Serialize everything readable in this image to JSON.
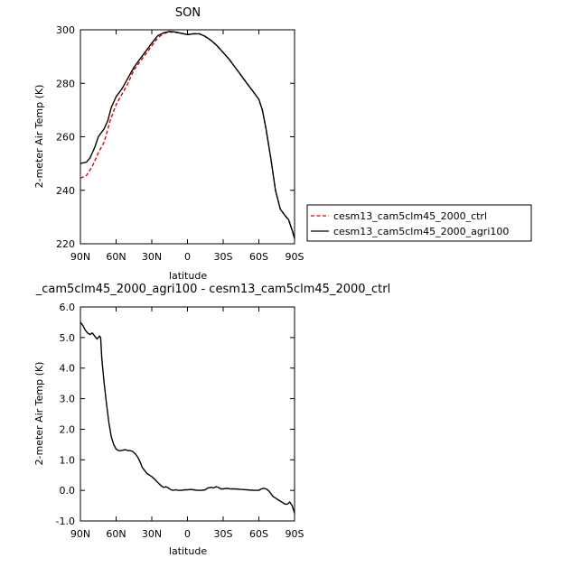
{
  "chart_data": [
    {
      "type": "line",
      "title": "SON",
      "xlabel": "latitude",
      "ylabel": "2-meter Air Temp (K)",
      "xlim": [
        90,
        -90
      ],
      "ylim": [
        220,
        300
      ],
      "x_ticks": [
        90,
        60,
        30,
        0,
        -30,
        -60,
        -90
      ],
      "x_tick_labels": [
        "90N",
        "60N",
        "30N",
        "0",
        "30S",
        "60S",
        "90S"
      ],
      "y_ticks": [
        220,
        240,
        260,
        280,
        300
      ],
      "y_tick_labels": [
        "220",
        "240",
        "260",
        "280",
        "300"
      ],
      "grid": false,
      "legend_position": "right",
      "series": [
        {
          "name": "cesm13_cam5clm45_2000_ctrl",
          "color": "#dd0000",
          "dash": "dashed",
          "points": [
            [
              90,
              244.5
            ],
            [
              85,
              245.5
            ],
            [
              80,
              249
            ],
            [
              75,
              254
            ],
            [
              70,
              258
            ],
            [
              65,
              266
            ],
            [
              60,
              272
            ],
            [
              55,
              276
            ],
            [
              50,
              280
            ],
            [
              45,
              285
            ],
            [
              40,
              288
            ],
            [
              35,
              291
            ],
            [
              30,
              294
            ],
            [
              25,
              297
            ],
            [
              20,
              298.6
            ],
            [
              15,
              299.2
            ],
            [
              10,
              299
            ],
            [
              5,
              298.7
            ],
            [
              0,
              298.2
            ],
            [
              -5,
              298.5
            ],
            [
              -10,
              298.5
            ],
            [
              -15,
              297.5
            ],
            [
              -20,
              296
            ],
            [
              -25,
              294
            ],
            [
              -30,
              291.5
            ],
            [
              -35,
              289
            ],
            [
              -40,
              286
            ],
            [
              -45,
              283
            ],
            [
              -50,
              280
            ],
            [
              -55,
              277
            ],
            [
              -60,
              274
            ],
            [
              -63,
              270
            ],
            [
              -66,
              263
            ],
            [
              -70,
              252
            ],
            [
              -74,
              240
            ],
            [
              -78,
              233
            ],
            [
              -82,
              230.5
            ],
            [
              -85,
              229
            ],
            [
              -88,
              225
            ],
            [
              -90,
              222
            ]
          ]
        },
        {
          "name": "cesm13_cam5clm45_2000_agri100",
          "color": "#000000",
          "dash": "solid",
          "points": [
            [
              90,
              250
            ],
            [
              85,
              250.5
            ],
            [
              82,
              252
            ],
            [
              78,
              256
            ],
            [
              75,
              260
            ],
            [
              70,
              263
            ],
            [
              67,
              266
            ],
            [
              64,
              271
            ],
            [
              60,
              275
            ],
            [
              55,
              278
            ],
            [
              50,
              282
            ],
            [
              45,
              286
            ],
            [
              40,
              289
            ],
            [
              35,
              292
            ],
            [
              30,
              295
            ],
            [
              25,
              297.8
            ],
            [
              20,
              298.9
            ],
            [
              15,
              299.4
            ],
            [
              10,
              299.2
            ],
            [
              5,
              298.7
            ],
            [
              0,
              298.2
            ],
            [
              -5,
              298.5
            ],
            [
              -10,
              298.5
            ],
            [
              -15,
              297.5
            ],
            [
              -20,
              296
            ],
            [
              -25,
              294
            ],
            [
              -30,
              291.5
            ],
            [
              -35,
              289
            ],
            [
              -40,
              286
            ],
            [
              -45,
              283
            ],
            [
              -50,
              280
            ],
            [
              -55,
              277
            ],
            [
              -60,
              274
            ],
            [
              -63,
              270
            ],
            [
              -66,
              263
            ],
            [
              -70,
              252
            ],
            [
              -74,
              240
            ],
            [
              -78,
              233
            ],
            [
              -82,
              230.5
            ],
            [
              -85,
              229
            ],
            [
              -88,
              225
            ],
            [
              -90,
              222
            ]
          ]
        }
      ]
    },
    {
      "type": "line",
      "title": "_cam5clm45_2000_agri100 - cesm13_cam5clm45_2000_ctrl",
      "xlabel": "latitude",
      "ylabel": "2-meter Air Temp (K)",
      "xlim": [
        90,
        -90
      ],
      "ylim": [
        -1.0,
        6.0
      ],
      "x_ticks": [
        90,
        60,
        30,
        0,
        -30,
        -60,
        -90
      ],
      "x_tick_labels": [
        "90N",
        "60N",
        "30N",
        "0",
        "30S",
        "60S",
        "90S"
      ],
      "y_ticks": [
        -1,
        0,
        1,
        2,
        3,
        4,
        5,
        6
      ],
      "y_tick_labels": [
        "-1.0",
        "0.0",
        "1.0",
        "2.0",
        "3.0",
        "4.0",
        "5.0",
        "6.0"
      ],
      "grid": false,
      "series": [
        {
          "color": "#000000",
          "dash": "solid",
          "points": [
            [
              90,
              5.5
            ],
            [
              88,
              5.4
            ],
            [
              86,
              5.25
            ],
            [
              84,
              5.15
            ],
            [
              82,
              5.1
            ],
            [
              80,
              5.15
            ],
            [
              78,
              5.05
            ],
            [
              76,
              4.95
            ],
            [
              74,
              5.05
            ],
            [
              73,
              5.0
            ],
            [
              72,
              4.3
            ],
            [
              70,
              3.5
            ],
            [
              68,
              2.8
            ],
            [
              66,
              2.2
            ],
            [
              64,
              1.75
            ],
            [
              62,
              1.5
            ],
            [
              60,
              1.35
            ],
            [
              58,
              1.3
            ],
            [
              56,
              1.3
            ],
            [
              54,
              1.32
            ],
            [
              52,
              1.33
            ],
            [
              50,
              1.3
            ],
            [
              48,
              1.3
            ],
            [
              46,
              1.27
            ],
            [
              44,
              1.2
            ],
            [
              42,
              1.1
            ],
            [
              40,
              0.95
            ],
            [
              38,
              0.75
            ],
            [
              36,
              0.65
            ],
            [
              34,
              0.55
            ],
            [
              32,
              0.5
            ],
            [
              30,
              0.45
            ],
            [
              28,
              0.38
            ],
            [
              26,
              0.3
            ],
            [
              24,
              0.22
            ],
            [
              22,
              0.15
            ],
            [
              20,
              0.1
            ],
            [
              18,
              0.12
            ],
            [
              16,
              0.08
            ],
            [
              14,
              0.02
            ],
            [
              12,
              0.0
            ],
            [
              10,
              0.02
            ],
            [
              8,
              0.0
            ],
            [
              5,
              0.0
            ],
            [
              2,
              0.02
            ],
            [
              0,
              0.02
            ],
            [
              -3,
              0.03
            ],
            [
              -5,
              0.02
            ],
            [
              -8,
              0.0
            ],
            [
              -10,
              0.0
            ],
            [
              -12,
              0.0
            ],
            [
              -15,
              0.02
            ],
            [
              -17,
              0.08
            ],
            [
              -20,
              0.1
            ],
            [
              -22,
              0.08
            ],
            [
              -24,
              0.12
            ],
            [
              -26,
              0.1
            ],
            [
              -28,
              0.05
            ],
            [
              -30,
              0.05
            ],
            [
              -33,
              0.07
            ],
            [
              -36,
              0.05
            ],
            [
              -40,
              0.05
            ],
            [
              -45,
              0.03
            ],
            [
              -50,
              0.02
            ],
            [
              -55,
              0.0
            ],
            [
              -60,
              0.0
            ],
            [
              -62,
              0.05
            ],
            [
              -64,
              0.07
            ],
            [
              -66,
              0.05
            ],
            [
              -68,
              0.0
            ],
            [
              -70,
              -0.1
            ],
            [
              -72,
              -0.2
            ],
            [
              -75,
              -0.28
            ],
            [
              -78,
              -0.35
            ],
            [
              -80,
              -0.4
            ],
            [
              -82,
              -0.45
            ],
            [
              -84,
              -0.45
            ],
            [
              -86,
              -0.38
            ],
            [
              -88,
              -0.5
            ],
            [
              -90,
              -0.75
            ]
          ]
        }
      ]
    }
  ]
}
